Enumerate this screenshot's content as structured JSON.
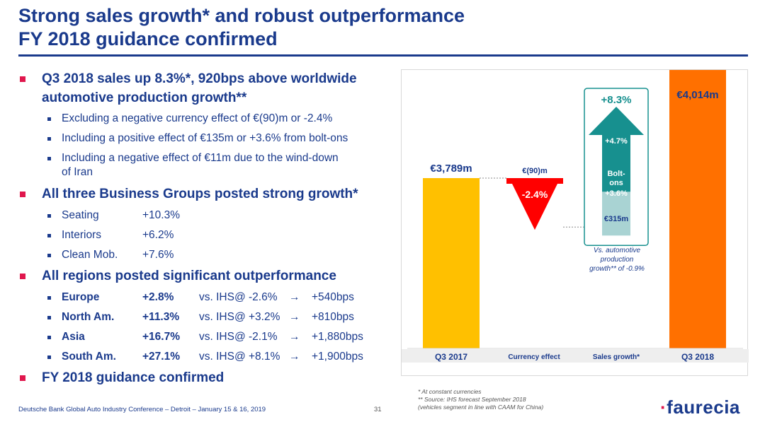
{
  "title": {
    "line1": "Strong sales growth* and robust outperformance",
    "line2": "FY 2018 guidance confirmed"
  },
  "bullets": {
    "q3": {
      "line1": "Q3 2018 sales up 8.3%*, 920bps above worldwide",
      "line2": "automotive production growth**",
      "subs": [
        "Excluding a negative currency effect of €(90)m or -2.4%",
        "Including a positive effect of €135m or +3.6% from bolt-ons",
        "Including a negative effect of €11m due to the wind-down",
        "of Iran"
      ]
    },
    "groups": {
      "heading": "All three Business Groups posted strong growth*",
      "rows": [
        {
          "name": "Seating",
          "value": "+10.3%"
        },
        {
          "name": "Interiors",
          "value": "+6.2%"
        },
        {
          "name": "Clean Mob.",
          "value": "+7.6%"
        }
      ]
    },
    "regions": {
      "heading": "All regions posted significant outperformance",
      "rows": [
        {
          "name": "Europe",
          "value": "+2.8%",
          "ihs": "vs. IHS@ -2.6%",
          "arrow": "→",
          "bps": "+540bps"
        },
        {
          "name": "North Am.",
          "value": "+11.3%",
          "ihs": "vs. IHS@ +3.2%",
          "arrow": "→",
          "bps": "+810bps"
        },
        {
          "name": "Asia",
          "value": "+16.7%",
          "ihs": "vs. IHS@ -2.1%",
          "arrow": "→",
          "bps": "+1,880bps"
        },
        {
          "name": "South Am.",
          "value": "+27.1%",
          "ihs": "vs. IHS@ +8.1%",
          "arrow": "→",
          "bps": "+1,900bps"
        }
      ]
    },
    "guidance": "FY 2018 guidance confirmed"
  },
  "chart_data": {
    "type": "bar",
    "subtype": "waterfall",
    "categories": [
      "Q3 2017",
      "Currency effect",
      "Sales growth*",
      "Q3 2018"
    ],
    "values": [
      3789,
      -90,
      315,
      4014
    ],
    "unit": "€m",
    "bar_labels": [
      "€3,789m",
      "€(90)m",
      "€315m",
      "€4,014m"
    ],
    "currency_pct": "-2.4%",
    "growth_total": "+8.3%",
    "growth_organic": "+4.7%",
    "bolt_ons": [
      "Bolt-",
      "ons",
      "+3.6%"
    ],
    "annotation": [
      "Vs. automotive",
      "production",
      "growth** of -0.9%"
    ],
    "colors": {
      "q3_2017": "#ffc000",
      "currency": "#ff0000",
      "growth": "#17908f",
      "bolt_ons": "#a9d3d3",
      "q3_2018": "#ff7000",
      "total_label": "#17908f"
    }
  },
  "footer": {
    "event": "Deutsche Bank Global Auto Industry Conference – Detroit – January 15 & 16, 2019",
    "page": "31"
  },
  "notes": [
    "* At constant currencies",
    "** Source: IHS forecast September 2018",
    "(vehicles segment in line with CAAM for China)"
  ],
  "logo": {
    "dot": "·",
    "text": "faurecia"
  }
}
